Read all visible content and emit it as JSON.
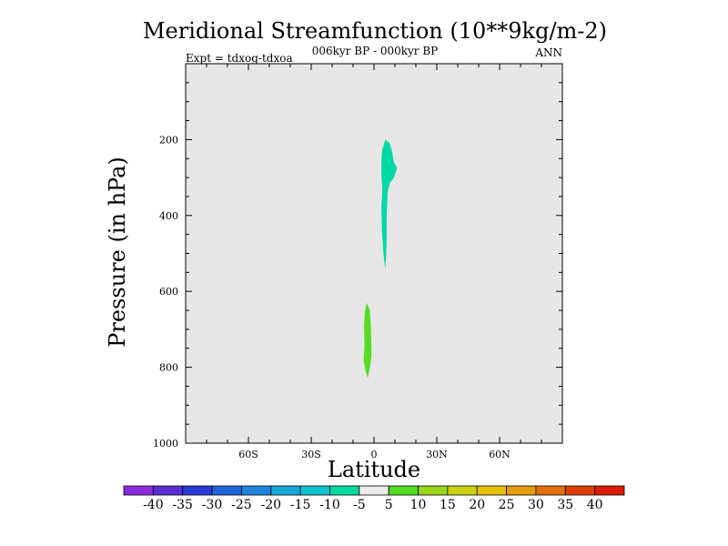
{
  "chart_data": {
    "type": "contour",
    "title": "Meridional Streamfunction (10**9kg/m-2)",
    "subtitle_center": "006kyr BP - 000kyr BP",
    "subtitle_left": "Expt = tdxog-tdxoa",
    "subtitle_right": "ANN",
    "xlabel": "Latitude",
    "ylabel": "Pressure (in hPa)",
    "xlim": [
      -90,
      90
    ],
    "ylim": [
      1000,
      0
    ],
    "x_ticks": [
      {
        "value": -60,
        "label": "60S"
      },
      {
        "value": -30,
        "label": "30S"
      },
      {
        "value": 0,
        "label": "0"
      },
      {
        "value": 30,
        "label": "30N"
      },
      {
        "value": 60,
        "label": "60N"
      }
    ],
    "y_ticks": [
      {
        "value": 200,
        "label": "200"
      },
      {
        "value": 400,
        "label": "400"
      },
      {
        "value": 600,
        "label": "600"
      },
      {
        "value": 800,
        "label": "800"
      },
      {
        "value": 1000,
        "label": "1000"
      }
    ],
    "background_color": "#e6e6e6",
    "features": [
      {
        "range": "-10 to -5",
        "color": "#00d9a3",
        "outline": [
          [
            5.5,
            200
          ],
          [
            7.5,
            210
          ],
          [
            8.5,
            230
          ],
          [
            9.5,
            260
          ],
          [
            11,
            275
          ],
          [
            9.5,
            300
          ],
          [
            7.5,
            315
          ],
          [
            6.5,
            340
          ],
          [
            6.2,
            380
          ],
          [
            6,
            420
          ],
          [
            6,
            470
          ],
          [
            5.8,
            510
          ],
          [
            5.3,
            540
          ],
          [
            4.5,
            500
          ],
          [
            3.8,
            440
          ],
          [
            3.5,
            380
          ],
          [
            4,
            330
          ],
          [
            3.5,
            290
          ],
          [
            3.5,
            250
          ],
          [
            4,
            225
          ]
        ]
      },
      {
        "range": "5 to 10",
        "color": "#55dc21",
        "outline": [
          [
            -3.5,
            630
          ],
          [
            -2,
            650
          ],
          [
            -1.5,
            690
          ],
          [
            -1.3,
            740
          ],
          [
            -1.2,
            770
          ],
          [
            -2,
            800
          ],
          [
            -3,
            830
          ],
          [
            -4,
            810
          ],
          [
            -5,
            780
          ],
          [
            -4.5,
            740
          ],
          [
            -4.8,
            690
          ],
          [
            -4.2,
            650
          ]
        ]
      }
    ],
    "colorbar": {
      "labels": [
        "-40",
        "-35",
        "-30",
        "-25",
        "-20",
        "-15",
        "-10",
        "-5",
        "5",
        "10",
        "15",
        "20",
        "25",
        "30",
        "35",
        "40"
      ],
      "colors": [
        "#8a2be2",
        "#5a2fd6",
        "#2a3ad9",
        "#1d63dc",
        "#1f86e0",
        "#15a8d8",
        "#10c3cf",
        "#00d9a3",
        "#ececec",
        "#55dc21",
        "#98d516",
        "#c9d10e",
        "#e6c10a",
        "#e59a09",
        "#e27008",
        "#df3e08",
        "#dd1a05"
      ]
    }
  }
}
